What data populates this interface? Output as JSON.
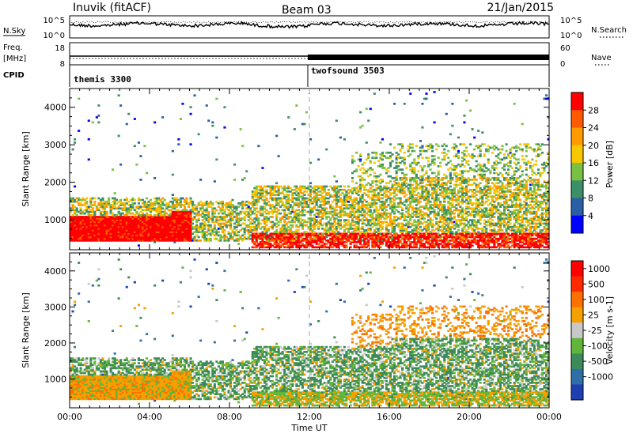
{
  "header": {
    "station": "Inuvik (fitACF)",
    "beam": "Beam 03",
    "date": "21/Jan/2015"
  },
  "top_panels": {
    "nsky_label": "N.Sky",
    "nsky_ticks": [
      "10^5",
      "10^0"
    ],
    "nsearch_ticks": [
      "10^5",
      "10^0"
    ],
    "nsearch_label": "N.Search",
    "freq_label": "Freq.",
    "freq_unit": "[MHz]",
    "freq_ticks": [
      "18",
      "8"
    ],
    "nave_ticks": [
      "60",
      "0"
    ],
    "nave_label": "Nave",
    "cpid_label": "CPID",
    "cpid_segments": [
      {
        "name": "themis 3300",
        "start_hour": 0
      },
      {
        "name": "twofsound 3503",
        "start_hour": 12
      }
    ]
  },
  "chart_data": [
    {
      "type": "heatmap",
      "title": "Power",
      "ylabel": "Slant Range [km]",
      "xlabel": "",
      "xlim_hours": [
        0,
        24
      ],
      "ylim": [
        200,
        4500
      ],
      "y_ticks": [
        1000,
        2000,
        3000,
        4000
      ],
      "colorbar": {
        "label": "Power [dB]",
        "tick_labels": [
          "28",
          "24",
          "20",
          "16",
          "12",
          "8",
          "4"
        ],
        "levels": [
          0,
          4,
          8,
          12,
          16,
          20,
          24,
          28,
          32
        ],
        "colors": [
          "#0000ff",
          "#2a5fa6",
          "#3c8f66",
          "#7ac143",
          "#f5c800",
          "#ff9a00",
          "#ff5a00",
          "#ff0000"
        ]
      }
    },
    {
      "type": "heatmap",
      "title": "Velocity",
      "ylabel": "Slant Range [km]",
      "xlabel": "Time UT",
      "xlim_hours": [
        0,
        24
      ],
      "ylim": [
        200,
        4500
      ],
      "y_ticks": [
        1000,
        2000,
        3000,
        4000
      ],
      "x_tick_labels": [
        "00:00",
        "04:00",
        "08:00",
        "12:00",
        "16:00",
        "20:00",
        "00:00"
      ],
      "colorbar": {
        "label": "Velocity [m s-1]",
        "tick_labels": [
          "1000",
          "500",
          "100",
          "25",
          "-25",
          "-100",
          "-500",
          "-1000"
        ],
        "colors": [
          "#1f3fb0",
          "#2f6fa8",
          "#3d8a5a",
          "#62b53b",
          "#c8c8c8",
          "#f6a000",
          "#ff7000",
          "#ff2a00",
          "#ff0000"
        ]
      }
    }
  ]
}
